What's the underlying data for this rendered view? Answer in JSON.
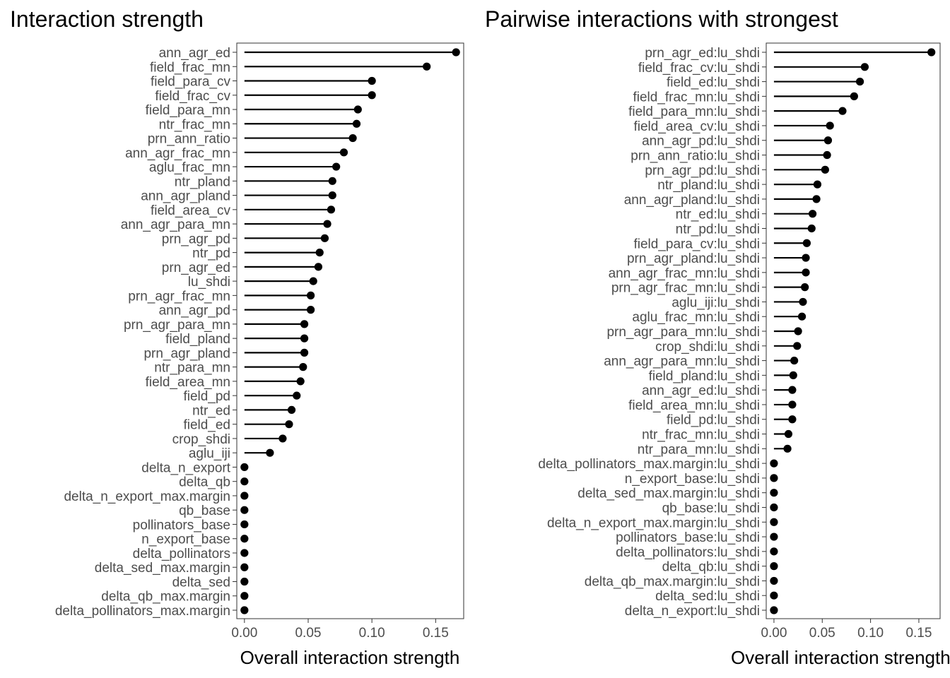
{
  "chart_data": [
    {
      "type": "lollipop",
      "title": "Interaction strength",
      "xlabel": "Overall interaction strength",
      "ylabel": "",
      "xlim": [
        -0.006,
        0.172
      ],
      "xticks": [
        0.0,
        0.05,
        0.1,
        0.15
      ],
      "xtick_labels": [
        "0.00",
        "0.05",
        "0.10",
        "0.15"
      ],
      "grid": false,
      "legend": "none",
      "color": "#000000",
      "categories": [
        "ann_agr_ed",
        "field_frac_mn",
        "field_para_cv",
        "field_frac_cv",
        "field_para_mn",
        "ntr_frac_mn",
        "prn_ann_ratio",
        "ann_agr_frac_mn",
        "aglu_frac_mn",
        "ntr_pland",
        "ann_agr_pland",
        "field_area_cv",
        "ann_agr_para_mn",
        "prn_agr_pd",
        "ntr_pd",
        "prn_agr_ed",
        "lu_shdi",
        "prn_agr_frac_mn",
        "ann_agr_pd",
        "prn_agr_para_mn",
        "field_pland",
        "prn_agr_pland",
        "ntr_para_mn",
        "field_area_mn",
        "field_pd",
        "ntr_ed",
        "field_ed",
        "crop_shdi",
        "aglu_iji",
        "delta_n_export",
        "delta_qb",
        "delta_n_export_max.margin",
        "qb_base",
        "pollinators_base",
        "n_export_base",
        "delta_pollinators",
        "delta_sed_max.margin",
        "delta_sed",
        "delta_qb_max.margin",
        "delta_pollinators_max.margin"
      ],
      "values": [
        0.166,
        0.143,
        0.1,
        0.1,
        0.089,
        0.088,
        0.085,
        0.078,
        0.072,
        0.069,
        0.069,
        0.068,
        0.065,
        0.063,
        0.059,
        0.058,
        0.054,
        0.052,
        0.052,
        0.047,
        0.047,
        0.047,
        0.046,
        0.044,
        0.041,
        0.037,
        0.035,
        0.03,
        0.02,
        0.0,
        0.0,
        0.0,
        0.0,
        0.0,
        0.0,
        0.0,
        0.0,
        0.0,
        0.0,
        0.0
      ]
    },
    {
      "type": "lollipop",
      "title": "Pairwise interactions with strongest",
      "xlabel": "Overall interaction strength",
      "ylabel": "",
      "xlim": [
        -0.008,
        0.172
      ],
      "xticks": [
        0.0,
        0.05,
        0.1,
        0.15
      ],
      "xtick_labels": [
        "0.00",
        "0.05",
        "0.10",
        "0.15"
      ],
      "grid": false,
      "legend": "none",
      "color": "#000000",
      "categories": [
        "prn_agr_ed:lu_shdi",
        "field_frac_cv:lu_shdi",
        "field_ed:lu_shdi",
        "field_frac_mn:lu_shdi",
        "field_para_mn:lu_shdi",
        "field_area_cv:lu_shdi",
        "ann_agr_pd:lu_shdi",
        "prn_ann_ratio:lu_shdi",
        "prn_agr_pd:lu_shdi",
        "ntr_pland:lu_shdi",
        "ann_agr_pland:lu_shdi",
        "ntr_ed:lu_shdi",
        "ntr_pd:lu_shdi",
        "field_para_cv:lu_shdi",
        "prn_agr_pland:lu_shdi",
        "ann_agr_frac_mn:lu_shdi",
        "prn_agr_frac_mn:lu_shdi",
        "aglu_iji:lu_shdi",
        "aglu_frac_mn:lu_shdi",
        "prn_agr_para_mn:lu_shdi",
        "crop_shdi:lu_shdi",
        "ann_agr_para_mn:lu_shdi",
        "field_pland:lu_shdi",
        "ann_agr_ed:lu_shdi",
        "field_area_mn:lu_shdi",
        "field_pd:lu_shdi",
        "ntr_frac_mn:lu_shdi",
        "ntr_para_mn:lu_shdi",
        "delta_pollinators_max.margin:lu_shdi",
        "n_export_base:lu_shdi",
        "delta_sed_max.margin:lu_shdi",
        "qb_base:lu_shdi",
        "delta_n_export_max.margin:lu_shdi",
        "pollinators_base:lu_shdi",
        "delta_pollinators:lu_shdi",
        "delta_qb:lu_shdi",
        "delta_qb_max.margin:lu_shdi",
        "delta_sed:lu_shdi",
        "delta_n_export:lu_shdi"
      ],
      "values": [
        0.163,
        0.094,
        0.089,
        0.083,
        0.071,
        0.058,
        0.056,
        0.055,
        0.053,
        0.045,
        0.044,
        0.04,
        0.039,
        0.034,
        0.033,
        0.033,
        0.032,
        0.03,
        0.029,
        0.025,
        0.024,
        0.021,
        0.02,
        0.019,
        0.019,
        0.019,
        0.015,
        0.014,
        0.0,
        0.0,
        0.0,
        0.0,
        0.0,
        0.0,
        0.0,
        0.0,
        0.0,
        0.0,
        0.0
      ]
    }
  ]
}
